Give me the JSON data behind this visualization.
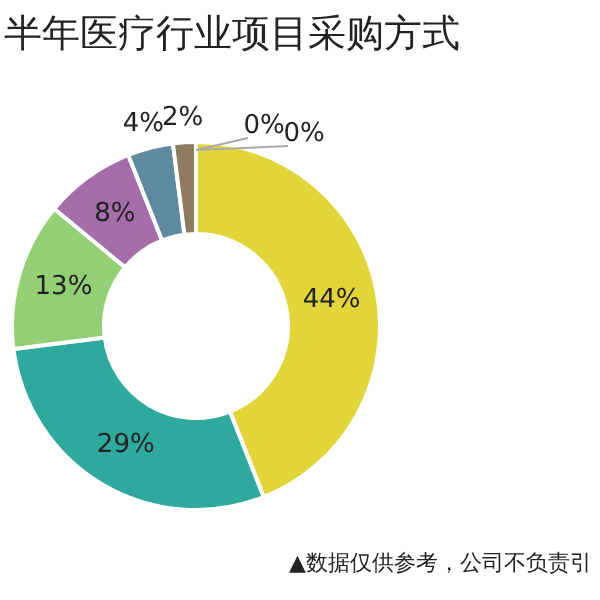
{
  "chart_data": {
    "type": "donut",
    "title": "半年医疗行业项目采购方式",
    "categories": [
      null,
      null,
      null,
      null,
      null,
      null,
      null,
      null
    ],
    "values": [
      44,
      29,
      13,
      8,
      4,
      2,
      0,
      0
    ],
    "value_labels": [
      "44%",
      "29%",
      "13%",
      "8%",
      "4%",
      "2%",
      "0%",
      "0%"
    ],
    "colors": [
      "#e2d53a",
      "#2fa99e",
      "#93cf74",
      "#a56eaa",
      "#5d8a9e",
      "#8e7b62",
      "#a8a8a8",
      "#c8c8c8"
    ],
    "annotations": [
      "▲数据仅供参考，公司不负责引"
    ],
    "legend": false
  }
}
